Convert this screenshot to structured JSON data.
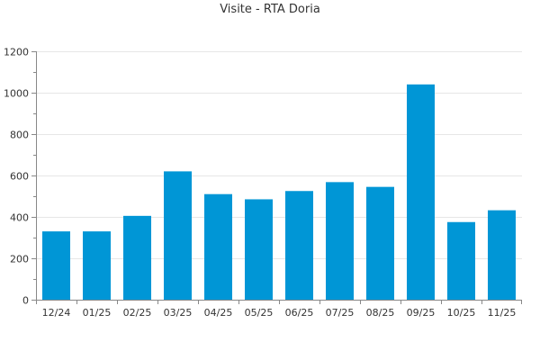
{
  "chart_data": {
    "type": "bar",
    "title": "Visite - RTA Doria",
    "xlabel": "",
    "ylabel": "",
    "categories": [
      "12/24",
      "01/25",
      "02/25",
      "03/25",
      "04/25",
      "05/25",
      "06/25",
      "07/25",
      "08/25",
      "09/25",
      "10/25",
      "11/25"
    ],
    "series": [
      {
        "values": [
          330,
          330,
          405,
          620,
          510,
          485,
          525,
          568,
          545,
          1040,
          375,
          432
        ]
      }
    ],
    "ylim": [
      0,
      1200
    ],
    "yticks": [
      0,
      200,
      400,
      600,
      800,
      1000,
      1200
    ],
    "grid": true,
    "legend": "none",
    "colors": {
      "bar": "#0096d6",
      "grid": "#e6e6e6",
      "axis": "#888888"
    }
  }
}
